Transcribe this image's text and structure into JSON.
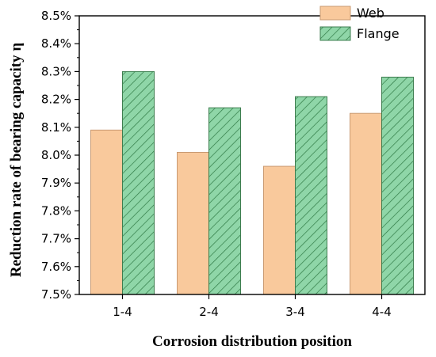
{
  "chart_data": {
    "type": "bar",
    "categories": [
      "1-4",
      "2-4",
      "3-4",
      "4-4"
    ],
    "series": [
      {
        "name": "Web",
        "values": [
          8.09,
          8.01,
          7.96,
          8.15
        ],
        "color": "#f9c99c",
        "pattern": "solid"
      },
      {
        "name": "Flange",
        "values": [
          8.3,
          8.17,
          8.21,
          8.28
        ],
        "color": "#8fd6a8",
        "pattern": "diagonal-hatch"
      }
    ],
    "title": "",
    "xlabel": "Corrosion distribution position",
    "ylabel": "Reduction rate of bearing capacity η",
    "ylim": [
      7.5,
      8.5
    ],
    "yticks": [
      7.5,
      7.6,
      7.7,
      7.8,
      7.9,
      8.0,
      8.1,
      8.2,
      8.3,
      8.4,
      8.5
    ],
    "ytick_labels": [
      "7.5%",
      "7.6%",
      "7.7%",
      "7.8%",
      "7.9%",
      "8.0%",
      "8.1%",
      "8.2%",
      "8.3%",
      "8.4%",
      "8.5%"
    ],
    "grid": false,
    "legend_position": "top-right"
  }
}
